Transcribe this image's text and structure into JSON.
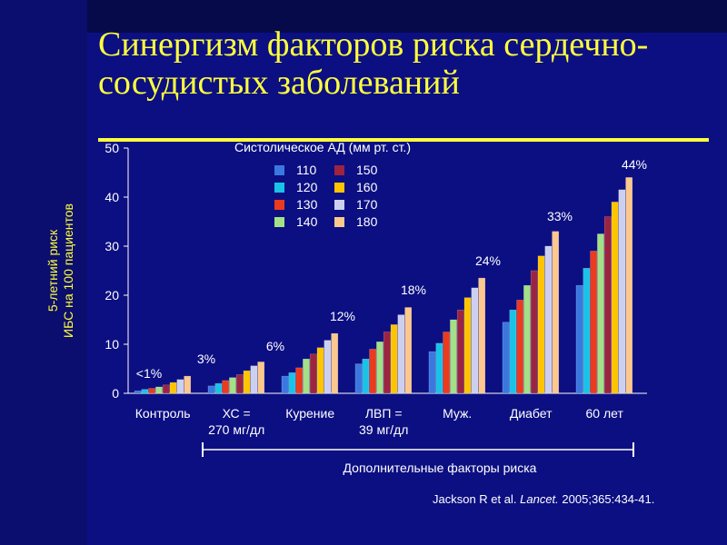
{
  "title": "Синергизм факторов риска сердечно-сосудистых заболеваний",
  "citation": {
    "authors": "Jackson R et al.",
    "journal": "Lancet.",
    "details": "2005;365:434-41."
  },
  "colors": {
    "background": "#0c0f82",
    "title": "#ffff3c",
    "text": "#ffffff"
  },
  "chart_data": {
    "type": "bar",
    "ylabel": [
      "5-летний риск",
      "ИБС на 100 пациентов"
    ],
    "ylim": [
      0,
      50
    ],
    "yticks": [
      0,
      10,
      20,
      30,
      40,
      50
    ],
    "categories": [
      "Контроль",
      "ХС = 270 мг/дл",
      "Курение",
      "ЛВП = 39 мг/дл",
      "Муж.",
      "Диабет",
      "60 лет"
    ],
    "category_label_lines": [
      [
        "Контроль"
      ],
      [
        "ХС =",
        "270 мг/дл"
      ],
      [
        "Курение"
      ],
      [
        "ЛВП =",
        "39 мг/дл"
      ],
      [
        "Муж."
      ],
      [
        "Диабет"
      ],
      [
        "60 лет"
      ]
    ],
    "annotations": [
      "<1%",
      "3%",
      "6%",
      "12%",
      "18%",
      "24%",
      "33%",
      "44%"
    ],
    "bracket_label": "Дополнительные факторы риска",
    "legend": {
      "title": "Систолическое АД (мм рт. ст.)",
      "placement": "top-center"
    },
    "series": [
      {
        "name": "110",
        "color": "#3a78e0",
        "values": [
          0.5,
          1.5,
          3.5,
          6,
          8.5,
          14.5,
          22
        ]
      },
      {
        "name": "120",
        "color": "#19c2e6",
        "values": [
          0.8,
          2,
          4.2,
          7,
          10.2,
          17,
          25.5
        ]
      },
      {
        "name": "130",
        "color": "#ec3a1d",
        "values": [
          1,
          2.6,
          5.2,
          9,
          12.5,
          19,
          29
        ]
      },
      {
        "name": "140",
        "color": "#a3e086",
        "values": [
          1.3,
          3.2,
          7,
          10.5,
          15,
          22,
          32.5
        ]
      },
      {
        "name": "150",
        "color": "#9c2440",
        "values": [
          1.7,
          3.8,
          8,
          12.5,
          17,
          25,
          36
        ]
      },
      {
        "name": "160",
        "color": "#ffc400",
        "values": [
          2.2,
          4.6,
          9.3,
          14,
          19.5,
          28,
          39
        ]
      },
      {
        "name": "170",
        "color": "#cccff0",
        "values": [
          2.8,
          5.6,
          10.8,
          16,
          21.5,
          30,
          41.5
        ]
      },
      {
        "name": "180",
        "color": "#fcc88d",
        "values": [
          3.5,
          6.4,
          12.2,
          17.5,
          23.5,
          33,
          44
        ]
      }
    ]
  }
}
